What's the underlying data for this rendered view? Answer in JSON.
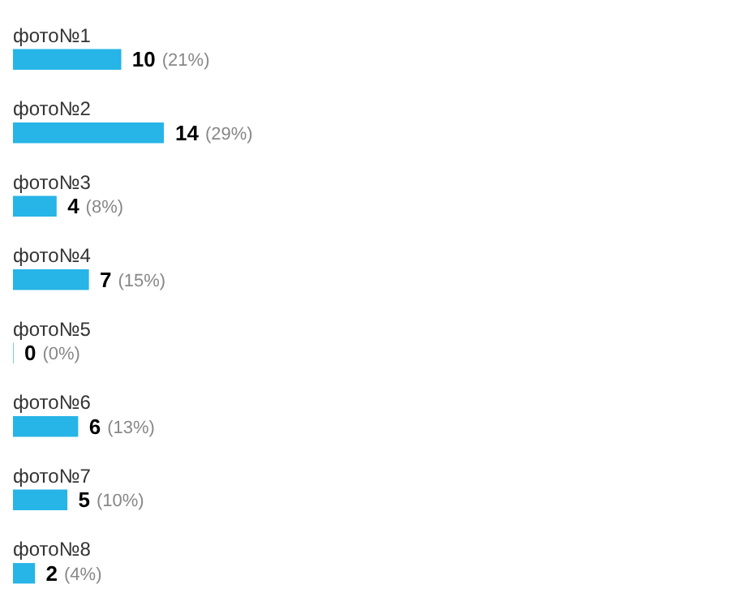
{
  "chart_data": {
    "type": "bar",
    "orientation": "horizontal",
    "categories": [
      "фото№1",
      "фото№2",
      "фото№3",
      "фото№4",
      "фото№5",
      "фото№6",
      "фото№7",
      "фото№8"
    ],
    "values": [
      10,
      14,
      4,
      7,
      0,
      6,
      5,
      2
    ],
    "value_labels": [
      "10 (21%)",
      "14 (29%)",
      "4 (8%)",
      "7 (15%)",
      "0 (0%)",
      "6 (13%)",
      "5 (10%)",
      "2 (4%)"
    ],
    "color": "#27b4e6"
  }
}
